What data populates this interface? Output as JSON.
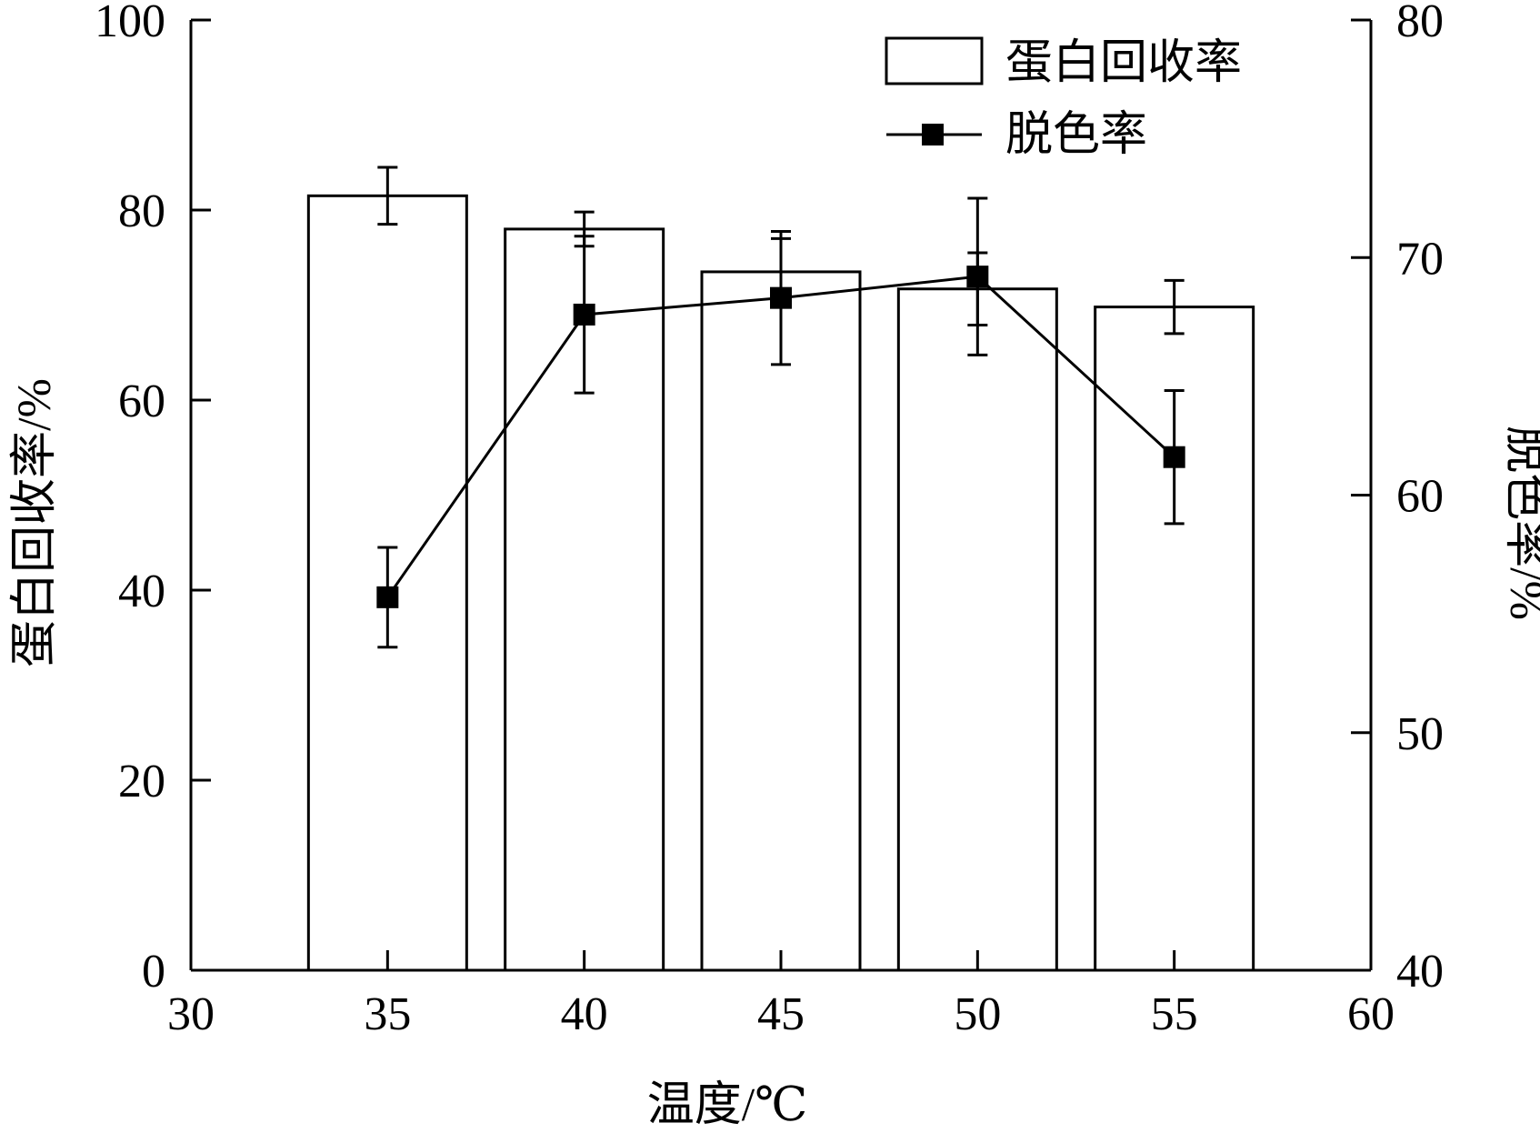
{
  "chart_data": {
    "type": "bar+line",
    "x_axis": {
      "label": "温度/℃",
      "range": [
        30,
        60
      ],
      "ticks": [
        30,
        35,
        40,
        45,
        50,
        55,
        60
      ]
    },
    "y_left": {
      "label": "蛋白回收率/%",
      "range": [
        0,
        100
      ],
      "ticks": [
        0,
        20,
        40,
        60,
        80,
        100
      ]
    },
    "y_right": {
      "label": "脱色率/%",
      "range": [
        40,
        80
      ],
      "ticks": [
        40,
        50,
        60,
        70,
        80
      ]
    },
    "legend": {
      "placement": "top-right",
      "entries": [
        "蛋白回收率",
        "脱色率"
      ]
    },
    "series": [
      {
        "name": "蛋白回收率",
        "type": "bar",
        "axis": "left",
        "x": [
          35,
          40,
          45,
          50,
          55
        ],
        "values": [
          81.5,
          78,
          73.5,
          71.7,
          69.8
        ],
        "errors": [
          3,
          1.8,
          3.5,
          3.8,
          2.8
        ],
        "color": "#ffffff",
        "edge_color": "#000000"
      },
      {
        "name": "脱色率",
        "type": "line",
        "axis": "right",
        "x": [
          35,
          40,
          45,
          50,
          55
        ],
        "values": [
          55.7,
          67.6,
          68.3,
          69.2,
          61.6
        ],
        "errors": [
          2.1,
          3.3,
          2.8,
          3.3,
          2.8
        ],
        "color": "#000000",
        "marker": "square"
      }
    ],
    "grid": false
  }
}
